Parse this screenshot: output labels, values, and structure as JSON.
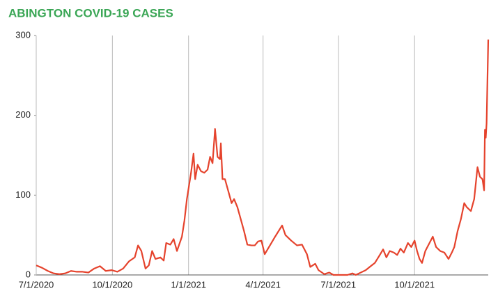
{
  "chart_data": {
    "type": "line",
    "title": "ABINGTON COVID-19 CASES",
    "x": [
      "2020-07-01",
      "2020-07-08",
      "2020-07-15",
      "2020-07-22",
      "2020-07-29",
      "2020-08-05",
      "2020-08-12",
      "2020-08-19",
      "2020-08-26",
      "2020-09-02",
      "2020-09-09",
      "2020-09-16",
      "2020-09-23",
      "2020-09-30",
      "2020-10-07",
      "2020-10-14",
      "2020-10-21",
      "2020-10-28",
      "2020-11-01",
      "2020-11-05",
      "2020-11-10",
      "2020-11-14",
      "2020-11-18",
      "2020-11-22",
      "2020-11-28",
      "2020-12-02",
      "2020-12-05",
      "2020-12-10",
      "2020-12-14",
      "2020-12-18",
      "2020-12-24",
      "2020-12-27",
      "2020-12-30",
      "2021-01-04",
      "2021-01-07",
      "2021-01-09",
      "2021-01-12",
      "2021-01-16",
      "2021-01-20",
      "2021-01-24",
      "2021-01-27",
      "2021-01-30",
      "2021-02-02",
      "2021-02-05",
      "2021-02-08",
      "2021-02-09",
      "2021-02-11",
      "2021-02-14",
      "2021-02-18",
      "2021-02-22",
      "2021-02-25",
      "2021-03-01",
      "2021-03-05",
      "2021-03-09",
      "2021-03-13",
      "2021-03-18",
      "2021-03-22",
      "2021-03-26",
      "2021-03-30",
      "2021-04-03",
      "2021-04-07",
      "2021-04-11",
      "2021-04-15",
      "2021-04-21",
      "2021-04-24",
      "2021-04-28",
      "2021-05-05",
      "2021-05-12",
      "2021-05-18",
      "2021-05-24",
      "2021-05-28",
      "2021-06-03",
      "2021-06-07",
      "2021-06-14",
      "2021-06-20",
      "2021-06-25",
      "2021-07-05",
      "2021-07-12",
      "2021-07-18",
      "2021-07-22",
      "2021-07-28",
      "2021-08-03",
      "2021-08-09",
      "2021-08-14",
      "2021-08-20",
      "2021-08-24",
      "2021-08-28",
      "2021-09-01",
      "2021-09-06",
      "2021-09-10",
      "2021-09-14",
      "2021-09-18",
      "2021-09-23",
      "2021-09-27",
      "2021-10-01",
      "2021-10-04",
      "2021-10-07",
      "2021-10-10",
      "2021-10-14",
      "2021-10-19",
      "2021-10-23",
      "2021-10-27",
      "2021-11-01",
      "2021-11-06",
      "2021-11-11",
      "2021-11-15",
      "2021-11-18",
      "2021-11-22",
      "2021-11-26",
      "2021-11-30",
      "2021-12-03",
      "2021-12-08",
      "2021-12-12",
      "2021-12-16",
      "2021-12-19",
      "2021-12-22",
      "2021-12-24",
      "2021-12-25",
      "2021-12-26",
      "2021-12-27",
      "2021-12-29"
    ],
    "series": [
      {
        "name": "Cases",
        "color": "#e5432d",
        "values": [
          12,
          9,
          5,
          2,
          1,
          2,
          5,
          4,
          4,
          3,
          8,
          11,
          5,
          6,
          4,
          8,
          17,
          22,
          37,
          30,
          8,
          12,
          30,
          20,
          22,
          18,
          40,
          38,
          45,
          30,
          48,
          68,
          95,
          128,
          152,
          120,
          138,
          130,
          128,
          132,
          148,
          140,
          183,
          148,
          145,
          165,
          120,
          120,
          105,
          90,
          95,
          85,
          70,
          55,
          38,
          37,
          37,
          42,
          43,
          26,
          33,
          40,
          47,
          57,
          62,
          50,
          43,
          37,
          38,
          26,
          10,
          14,
          6,
          1,
          3,
          0,
          0,
          0,
          2,
          0,
          3,
          6,
          11,
          15,
          25,
          32,
          22,
          30,
          28,
          25,
          33,
          28,
          40,
          35,
          43,
          30,
          20,
          15,
          30,
          40,
          48,
          35,
          30,
          28,
          20,
          28,
          35,
          55,
          70,
          90,
          85,
          80,
          95,
          135,
          123,
          120,
          106,
          182,
          172,
          190,
          295
        ]
      }
    ],
    "xlim": [
      "2020-07-01",
      "2021-12-29"
    ],
    "xticks": [
      {
        "value": "2020-07-01",
        "label": "7/1/2020"
      },
      {
        "value": "2020-10-01",
        "label": "10/1/2020"
      },
      {
        "value": "2021-01-01",
        "label": "1/1/2021"
      },
      {
        "value": "2021-04-01",
        "label": "4/1/2021"
      },
      {
        "value": "2021-07-01",
        "label": "7/1/2021"
      },
      {
        "value": "2021-10-01",
        "label": "10/1/2021"
      }
    ],
    "ylim": [
      0,
      300
    ],
    "yticks": [
      0,
      100,
      200,
      300
    ],
    "grid": true
  }
}
